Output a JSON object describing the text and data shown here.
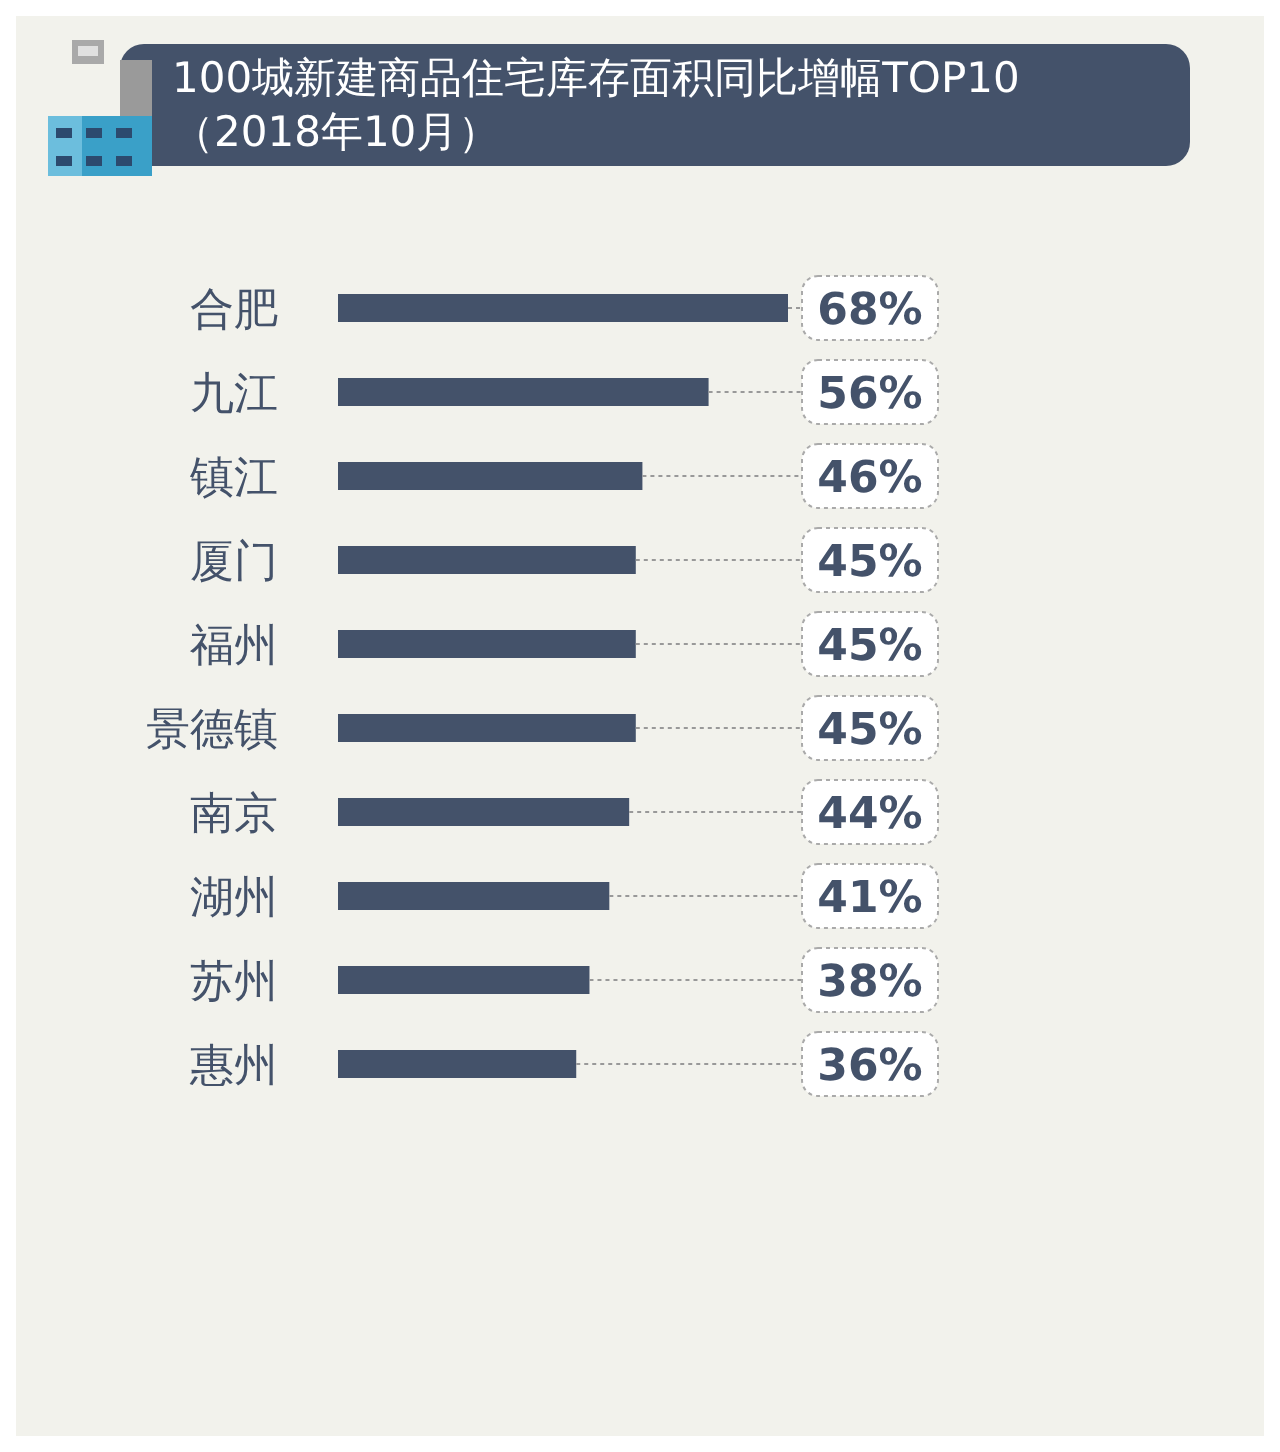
{
  "chart_data": {
    "type": "bar",
    "orientation": "horizontal",
    "title": "100城新建商品住宅库存面积同比增幅TOP10",
    "subtitle": "（2018年10月）",
    "categories": [
      "合肥",
      "九江",
      "镇江",
      "厦门",
      "福州",
      "景德镇",
      "南京",
      "湖州",
      "苏州",
      "惠州"
    ],
    "values": [
      68,
      56,
      46,
      45,
      45,
      45,
      44,
      41,
      38,
      36
    ],
    "value_labels": [
      "68%",
      "56%",
      "46%",
      "45%",
      "45%",
      "45%",
      "44%",
      "41%",
      "38%",
      "36%"
    ],
    "color": "#44526a",
    "xlim": [
      0,
      68
    ],
    "tick_labels": "y"
  }
}
